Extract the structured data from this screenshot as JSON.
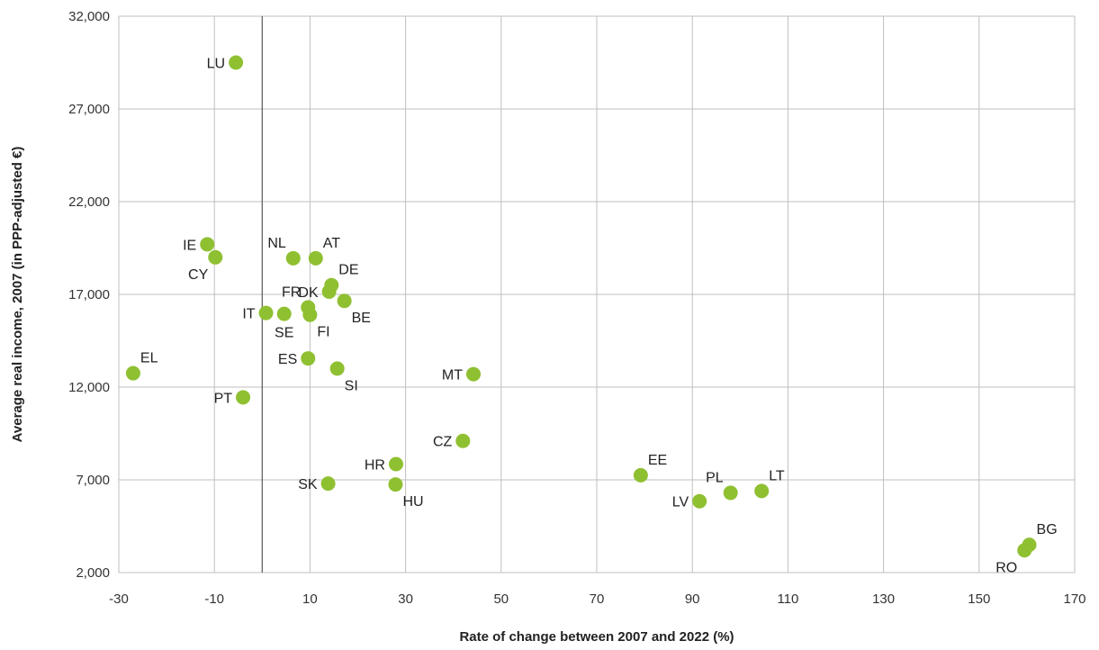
{
  "chart_data": {
    "type": "scatter",
    "xlabel": "Rate of change between 2007 and 2022 (%)",
    "ylabel": "Average real income, 2007 (in PPP-adjusted €)",
    "xlim": [
      -30,
      170
    ],
    "ylim": [
      2000,
      32000
    ],
    "xticks": [
      -30,
      -10,
      10,
      30,
      50,
      70,
      90,
      110,
      130,
      150,
      170
    ],
    "yticks": [
      2000,
      7000,
      12000,
      17000,
      22000,
      27000,
      32000
    ],
    "xtick_labels": [
      "-30",
      "-10",
      "10",
      "30",
      "50",
      "70",
      "90",
      "110",
      "130",
      "150",
      "170"
    ],
    "ytick_labels": [
      "2,000",
      "7,000",
      "12,000",
      "17,000",
      "22,000",
      "27,000",
      "32,000"
    ],
    "grid": true,
    "point_color": "#8fc031",
    "points": [
      {
        "label": "LU",
        "x": -5.5,
        "y": 29500,
        "pos": "left"
      },
      {
        "label": "IE",
        "x": -11.5,
        "y": 19700,
        "pos": "left"
      },
      {
        "label": "CY",
        "x": -9.8,
        "y": 19000,
        "pos": "below-left"
      },
      {
        "label": "NL",
        "x": 6.5,
        "y": 18950,
        "pos": "above-left"
      },
      {
        "label": "AT",
        "x": 11.2,
        "y": 18950,
        "pos": "above-right"
      },
      {
        "label": "DE",
        "x": 14.5,
        "y": 17500,
        "pos": "above-right"
      },
      {
        "label": "DK",
        "x": 14.0,
        "y": 17150,
        "pos": "left"
      },
      {
        "label": "BE",
        "x": 17.2,
        "y": 16650,
        "pos": "below-right"
      },
      {
        "label": "FR",
        "x": 9.6,
        "y": 16300,
        "pos": "above-left"
      },
      {
        "label": "IT",
        "x": 0.8,
        "y": 16000,
        "pos": "left"
      },
      {
        "label": "SE",
        "x": 4.6,
        "y": 15950,
        "pos": "below"
      },
      {
        "label": "FI",
        "x": 10.0,
        "y": 15900,
        "pos": "below-right"
      },
      {
        "label": "ES",
        "x": 9.6,
        "y": 13550,
        "pos": "left"
      },
      {
        "label": "SI",
        "x": 15.7,
        "y": 13000,
        "pos": "below-right"
      },
      {
        "label": "EL",
        "x": -27.0,
        "y": 12750,
        "pos": "above-right"
      },
      {
        "label": "MT",
        "x": 44.2,
        "y": 12700,
        "pos": "left"
      },
      {
        "label": "PT",
        "x": -4.0,
        "y": 11450,
        "pos": "left"
      },
      {
        "label": "CZ",
        "x": 42.0,
        "y": 9100,
        "pos": "left"
      },
      {
        "label": "HR",
        "x": 28.0,
        "y": 7850,
        "pos": "left"
      },
      {
        "label": "SK",
        "x": 13.8,
        "y": 6800,
        "pos": "left"
      },
      {
        "label": "HU",
        "x": 27.9,
        "y": 6750,
        "pos": "below-right"
      },
      {
        "label": "EE",
        "x": 79.2,
        "y": 7250,
        "pos": "above-right"
      },
      {
        "label": "LT",
        "x": 104.5,
        "y": 6400,
        "pos": "above-right"
      },
      {
        "label": "PL",
        "x": 98.0,
        "y": 6300,
        "pos": "above-left"
      },
      {
        "label": "LV",
        "x": 91.5,
        "y": 5850,
        "pos": "left"
      },
      {
        "label": "BG",
        "x": 160.5,
        "y": 3500,
        "pos": "above-right"
      },
      {
        "label": "RO",
        "x": 159.5,
        "y": 3200,
        "pos": "below-left"
      }
    ]
  }
}
